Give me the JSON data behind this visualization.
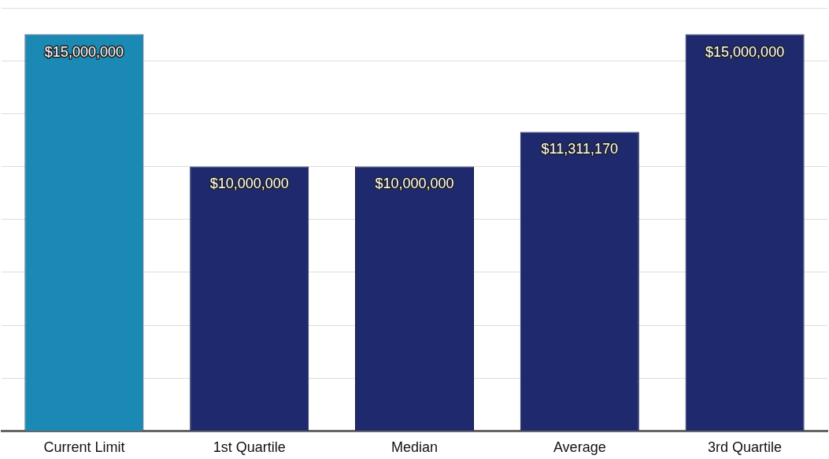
{
  "chart_data": {
    "type": "bar",
    "categories": [
      "Current Limit",
      "1st Quartile",
      "Median",
      "Average",
      "3rd Quartile"
    ],
    "values": [
      15000000,
      10000000,
      10000000,
      11311170,
      15000000
    ],
    "colors": [
      "#1a8ab5",
      "#1f2a6e",
      "#1f2a6e",
      "#1f2a6e",
      "#1f2a6e"
    ],
    "value_labels": [
      "$15,000,000",
      "$10,000,000",
      "$10,000,000",
      "$11,311,170",
      "$15,000,000"
    ],
    "ylim": [
      0,
      16000000
    ],
    "yticks": [
      {
        "value": 0,
        "label": null
      },
      {
        "value": 2000000,
        "label": null
      },
      {
        "value": 4000000,
        "label": null
      },
      {
        "value": 6000000,
        "label": null
      },
      {
        "value": 8000000,
        "label": null
      },
      {
        "value": 10000000,
        "label": null
      },
      {
        "value": 12000000,
        "label": null
      },
      {
        "value": 14000000,
        "label": null
      },
      {
        "value": 16000000,
        "label": null
      }
    ],
    "grid": "y",
    "legend": false
  }
}
